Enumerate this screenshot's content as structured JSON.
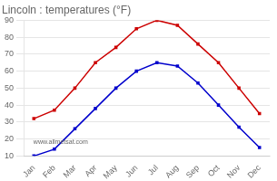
{
  "chart_data": {
    "type": "line",
    "title": "Lincoln : temperatures (°F)",
    "categories": [
      "Jan",
      "Feb",
      "Mar",
      "Apr",
      "May",
      "Jun",
      "Jul",
      "Aug",
      "Sep",
      "Oct",
      "Nov",
      "Dec"
    ],
    "series": [
      {
        "color": "#cc0000",
        "values": [
          32,
          37,
          50,
          65,
          74,
          85,
          90,
          87,
          76,
          65,
          50,
          35
        ]
      },
      {
        "color": "#0000cc",
        "values": [
          10,
          14,
          26,
          38,
          50,
          60,
          65,
          63,
          53,
          40,
          27,
          15
        ]
      }
    ],
    "ylim": [
      10,
      90
    ],
    "yticks": [
      10,
      20,
      30,
      40,
      50,
      60,
      70,
      80,
      90
    ],
    "grid": "y",
    "marker": "square",
    "annotations": [
      "www.allmetsat.com"
    ]
  }
}
